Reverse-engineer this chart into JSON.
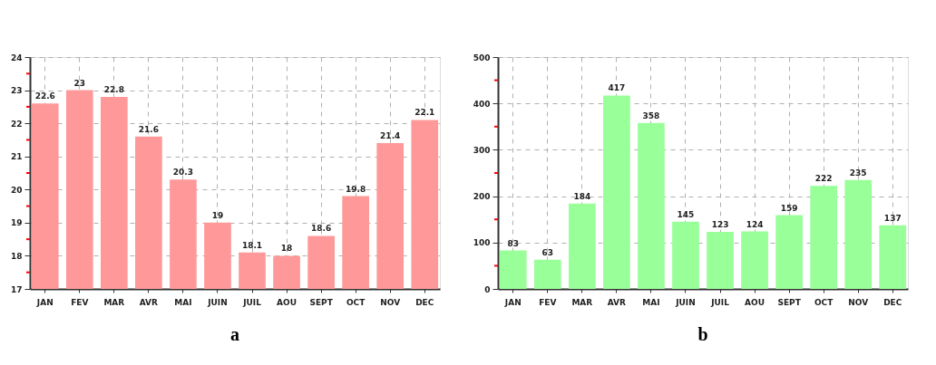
{
  "chart_data": [
    {
      "type": "bar",
      "categories": [
        "JAN",
        "FEV",
        "MAR",
        "AVR",
        "MAI",
        "JUIN",
        "JUIL",
        "AOU",
        "SEPT",
        "OCT",
        "NOV",
        "DEC"
      ],
      "values": [
        22.6,
        23,
        22.8,
        21.6,
        20.3,
        19,
        18.1,
        18,
        18.6,
        19.8,
        21.4,
        22.1
      ],
      "color": "#ff9999",
      "ylim": [
        17,
        24
      ],
      "yticks": [
        17,
        {
          "value": 17.5,
          "label": null
        },
        18,
        {
          "value": 18.5,
          "label": null
        },
        19,
        {
          "value": 19.5,
          "label": null
        },
        20,
        {
          "value": 20.5,
          "label": null
        },
        21,
        {
          "value": 21.5,
          "label": null
        },
        22,
        {
          "value": 22.5,
          "label": null
        },
        23,
        {
          "value": 23.5,
          "label": null
        },
        24
      ],
      "grid": true,
      "data_labels": true,
      "annotations": [
        "a"
      ]
    },
    {
      "type": "bar",
      "categories": [
        "JAN",
        "FEV",
        "MAR",
        "AVR",
        "MAI",
        "JUIN",
        "JUIL",
        "AOU",
        "SEPT",
        "OCT",
        "NOV",
        "DEC"
      ],
      "values": [
        83,
        63,
        184,
        417,
        358,
        145,
        123,
        124,
        159,
        222,
        235,
        137
      ],
      "color": "#99ff99",
      "ylim": [
        0,
        500
      ],
      "yticks": [
        0,
        {
          "value": 50,
          "label": null
        },
        100,
        {
          "value": 150,
          "label": null
        },
        200,
        {
          "value": 250,
          "label": null
        },
        300,
        {
          "value": 350,
          "label": null
        },
        400,
        {
          "value": 450,
          "label": null
        },
        500
      ],
      "grid": true,
      "data_labels": true,
      "annotations": [
        "b"
      ]
    }
  ]
}
